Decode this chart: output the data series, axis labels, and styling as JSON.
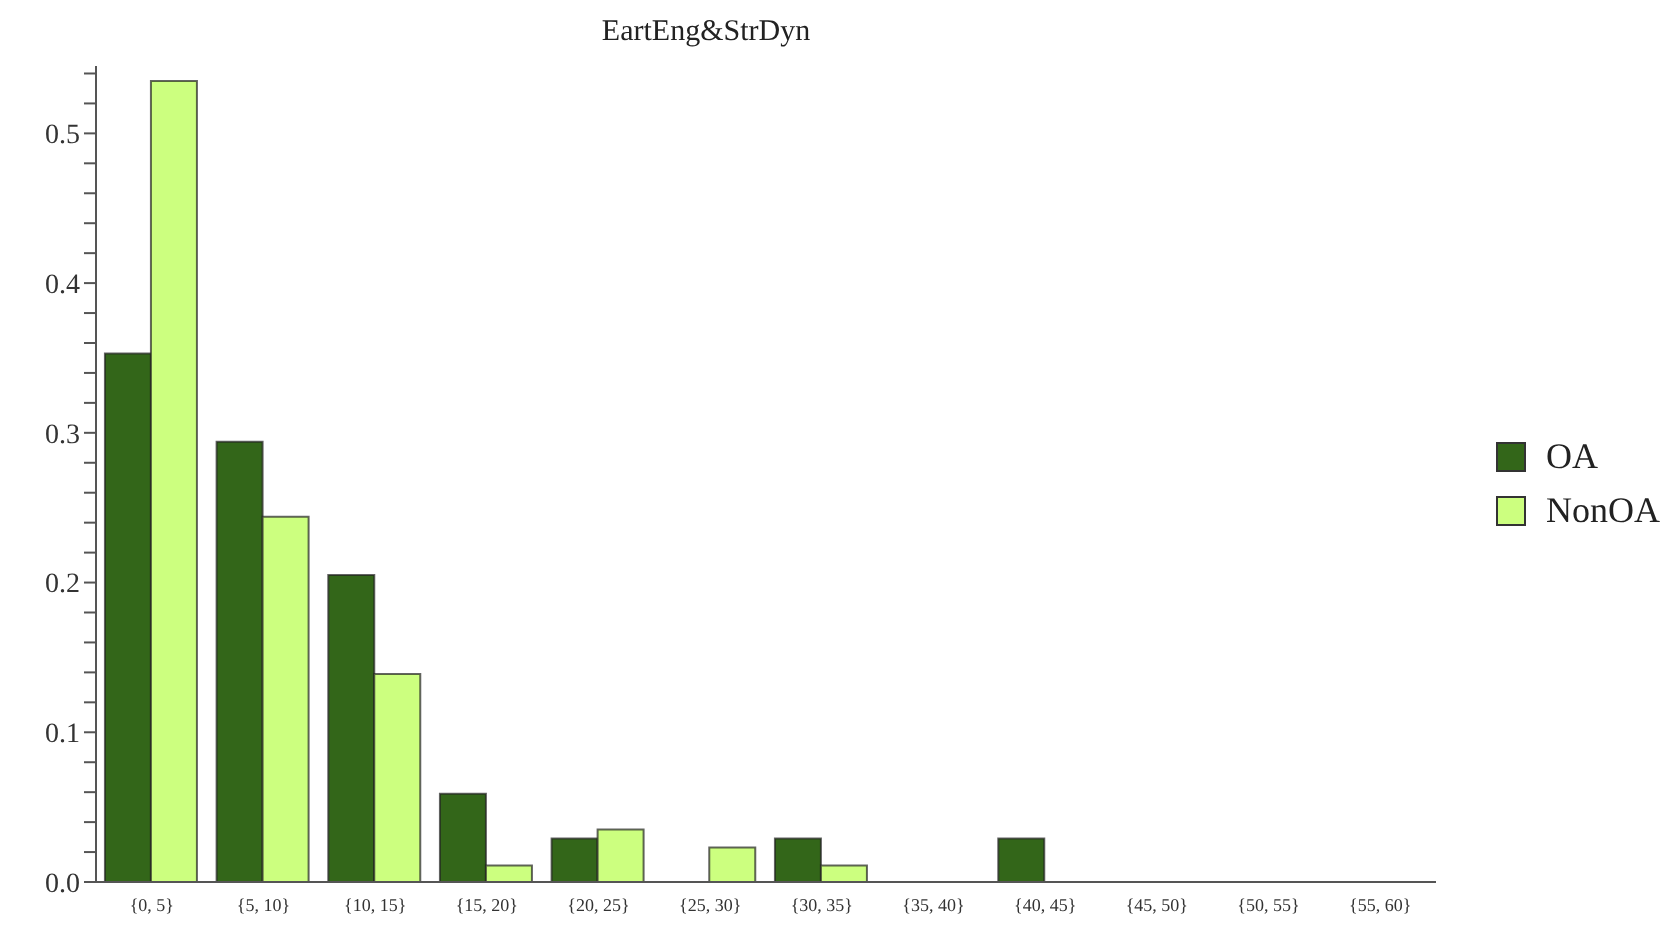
{
  "chart_data": {
    "type": "bar",
    "title": "EartEng&StrDyn",
    "categories": [
      "{0, 5}",
      "{5, 10}",
      "{10, 15}",
      "{15, 20}",
      "{20, 25}",
      "{25, 30}",
      "{30, 35}",
      "{35, 40}",
      "{40, 45}",
      "{45, 50}",
      "{50, 55}",
      "{55, 60}"
    ],
    "series": [
      {
        "name": "OA",
        "color": "#336619",
        "values": [
          0.353,
          0.294,
          0.205,
          0.059,
          0.029,
          0,
          0.029,
          0,
          0.029,
          0,
          0,
          0
        ]
      },
      {
        "name": "NonOA",
        "color": "#ccff7f",
        "values": [
          0.535,
          0.244,
          0.139,
          0.011,
          0.035,
          0.023,
          0.011,
          0,
          0,
          0,
          0,
          0
        ]
      }
    ],
    "ylim": [
      0,
      0.545
    ],
    "yticks": [
      {
        "value": 0,
        "label": "0.0"
      },
      {
        "value": 0.02,
        "label": null
      },
      {
        "value": 0.04,
        "label": null
      },
      {
        "value": 0.06,
        "label": null
      },
      {
        "value": 0.08,
        "label": null
      },
      0.1,
      {
        "value": 0.12,
        "label": null
      },
      {
        "value": 0.14,
        "label": null
      },
      {
        "value": 0.16,
        "label": null
      },
      {
        "value": 0.18,
        "label": null
      },
      0.2,
      {
        "value": 0.22,
        "label": null
      },
      {
        "value": 0.24,
        "label": null
      },
      {
        "value": 0.26,
        "label": null
      },
      {
        "value": 0.28,
        "label": null
      },
      0.3,
      {
        "value": 0.32,
        "label": null
      },
      {
        "value": 0.34,
        "label": null
      },
      {
        "value": 0.36,
        "label": null
      },
      {
        "value": 0.38,
        "label": null
      },
      0.4,
      {
        "value": 0.42,
        "label": null
      },
      {
        "value": 0.44,
        "label": null
      },
      {
        "value": 0.46,
        "label": null
      },
      {
        "value": 0.48,
        "label": null
      },
      0.5,
      {
        "value": 0.52,
        "label": null
      },
      {
        "value": 0.54,
        "label": null
      }
    ],
    "legend": "right",
    "grid": false
  }
}
